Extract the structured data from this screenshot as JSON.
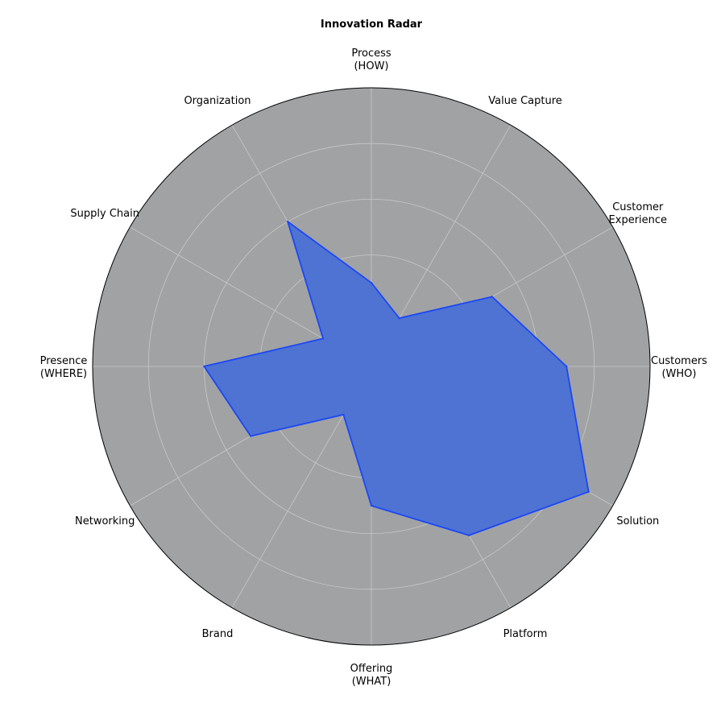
{
  "chart_data": {
    "type": "radar",
    "title": "Innovation Radar",
    "categories": [
      [
        "Customers",
        "(WHO)"
      ],
      [
        "Customer",
        "Experience"
      ],
      [
        "Value Capture"
      ],
      [
        "Process",
        "(HOW)"
      ],
      [
        "Organization"
      ],
      [
        "Supply Chain"
      ],
      [
        "Presence",
        "(WHERE)"
      ],
      [
        "Networking"
      ],
      [
        "Brand"
      ],
      [
        "Offering",
        "(WHAT)"
      ],
      [
        "Platform"
      ],
      [
        "Solution"
      ]
    ],
    "series": [
      {
        "values": [
          7.0,
          5.0,
          2.0,
          3.0,
          6.0,
          2.0,
          6.0,
          5.0,
          2.0,
          5.0,
          7.0,
          9.0
        ]
      }
    ],
    "rlim": [
      0,
      10
    ],
    "rticks": [
      2,
      4,
      6,
      8,
      10
    ],
    "grid": true,
    "colors": {
      "plot_background": "#a1a2a3",
      "fill": "#4f73d2",
      "line": "#1a47f7",
      "grid": "#c8c8c8",
      "outline": "#000000"
    }
  }
}
